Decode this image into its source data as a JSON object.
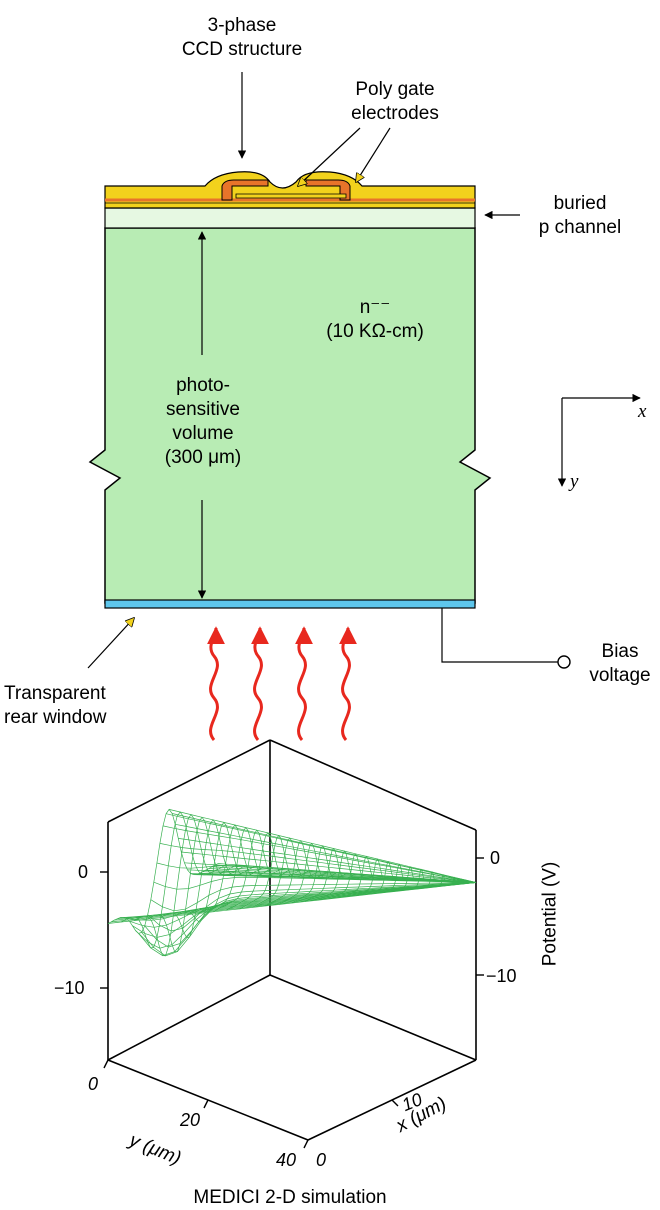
{
  "labels": {
    "ccd_line1": "3-phase",
    "ccd_line2": "CCD structure",
    "poly_line1": "Poly gate",
    "poly_line2": "electrodes",
    "buried_line1": "buried",
    "buried_line2": "p channel",
    "material_line1": "n⁻⁻",
    "material_line2": "(10 KΩ-cm)",
    "photo_line1": "photo-",
    "photo_line2": "sensitive",
    "photo_line3": "volume",
    "photo_line4": "(300 μm)",
    "transparent_line1": "Transparent",
    "transparent_line2": "rear window",
    "bias_line1": "Bias",
    "bias_line2": "voltage",
    "axis_x": "x",
    "axis_y": "y",
    "caption": "MEDICI 2-D simulation"
  },
  "plot": {
    "left_tick_top": "0",
    "left_tick_bottom": "−10",
    "right_tick_top": "0",
    "right_tick_bottom": "−10",
    "potential_label": "Potential (V)",
    "y_tick_0": "0",
    "y_tick_20": "20",
    "y_tick_40": "40",
    "y_axis_label": "y (μm)",
    "x_tick_0": "0",
    "x_tick_10": "10",
    "x_axis_label": "x (μm)"
  },
  "colors": {
    "substrate": "#b8ecb4",
    "gate_yellow": "#f2d21c",
    "gate_orange": "#e8742a",
    "buried_channel": "#e6f8e2",
    "rear_window": "#5ec6ec",
    "light_rays": "#e8281e",
    "mesh": "#38b050"
  }
}
